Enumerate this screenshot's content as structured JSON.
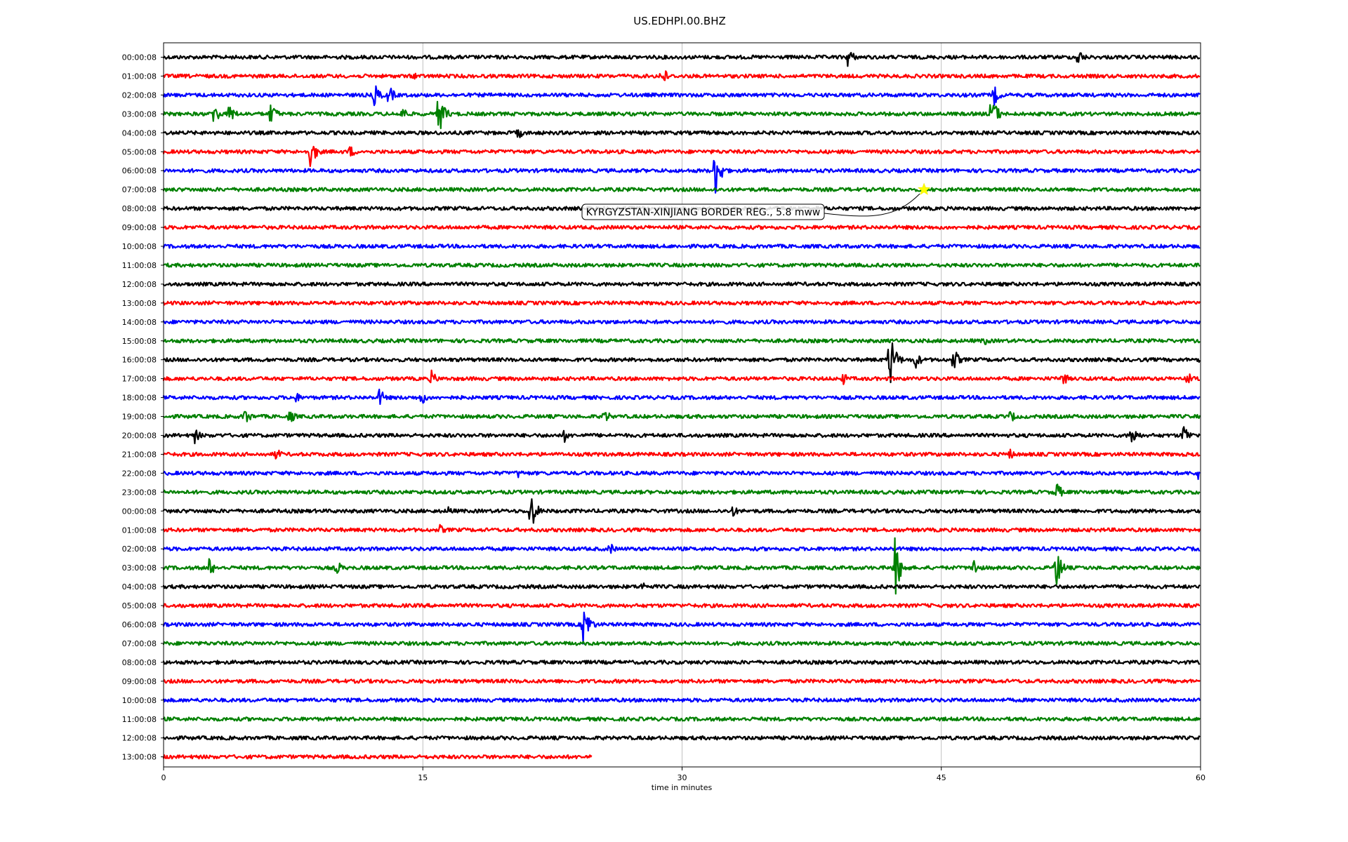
{
  "chart_data": {
    "type": "line",
    "title": "US.EDHPI.00.BHZ",
    "xlabel": "time in minutes",
    "ylabel": "",
    "xlim": [
      0,
      60
    ],
    "x_ticks": [
      0,
      15,
      30,
      45,
      60
    ],
    "x_tick_labels": [
      "0",
      "15",
      "30",
      "45",
      "60"
    ],
    "grid": "vertical at x ticks",
    "row_labels": [
      "00:00:08",
      "01:00:08",
      "02:00:08",
      "03:00:08",
      "04:00:08",
      "05:00:08",
      "06:00:08",
      "07:00:08",
      "08:00:08",
      "09:00:08",
      "10:00:08",
      "11:00:08",
      "12:00:08",
      "13:00:08",
      "14:00:08",
      "15:00:08",
      "16:00:08",
      "17:00:08",
      "18:00:08",
      "19:00:08",
      "20:00:08",
      "21:00:08",
      "22:00:08",
      "23:00:08",
      "00:00:08",
      "01:00:08",
      "02:00:08",
      "03:00:08",
      "04:00:08",
      "05:00:08",
      "06:00:08",
      "07:00:08",
      "08:00:08",
      "09:00:08",
      "10:00:08",
      "11:00:08",
      "12:00:08",
      "13:00:08"
    ],
    "color_cycle": [
      "#000000",
      "#ff0000",
      "#0000ff",
      "#008000"
    ],
    "last_row_end_minute": 24.8,
    "events": [
      {
        "row": 0,
        "minute": 39.6,
        "amp": 0.8
      },
      {
        "row": 0,
        "minute": 52.9,
        "amp": 0.7
      },
      {
        "row": 1,
        "minute": 28.8,
        "amp": 0.9
      },
      {
        "row": 1,
        "minute": 14.5,
        "amp": 0.35
      },
      {
        "row": 2,
        "minute": 12.2,
        "amp": 0.9
      },
      {
        "row": 2,
        "minute": 13.0,
        "amp": 0.8
      },
      {
        "row": 2,
        "minute": 48.0,
        "amp": 0.9
      },
      {
        "row": 3,
        "minute": 2.9,
        "amp": 0.9
      },
      {
        "row": 3,
        "minute": 3.8,
        "amp": 0.8
      },
      {
        "row": 3,
        "minute": 6.2,
        "amp": 0.9
      },
      {
        "row": 3,
        "minute": 13.8,
        "amp": 0.6
      },
      {
        "row": 3,
        "minute": 15.9,
        "amp": 1.7
      },
      {
        "row": 3,
        "minute": 47.9,
        "amp": 1.5
      },
      {
        "row": 4,
        "minute": 20.5,
        "amp": 0.5
      },
      {
        "row": 5,
        "minute": 8.5,
        "amp": 1.2
      },
      {
        "row": 5,
        "minute": 10.8,
        "amp": 0.5
      },
      {
        "row": 6,
        "minute": 31.9,
        "amp": 2.0
      },
      {
        "row": 15,
        "minute": 47.5,
        "amp": 0.4
      },
      {
        "row": 16,
        "minute": 42.0,
        "amp": 2.2
      },
      {
        "row": 16,
        "minute": 43.5,
        "amp": 0.7
      },
      {
        "row": 16,
        "minute": 45.7,
        "amp": 0.9
      },
      {
        "row": 16,
        "minute": 60.0,
        "amp": 0.9
      },
      {
        "row": 17,
        "minute": 15.5,
        "amp": 0.6
      },
      {
        "row": 17,
        "minute": 39.3,
        "amp": 0.5
      },
      {
        "row": 17,
        "minute": 52.0,
        "amp": 0.6
      },
      {
        "row": 17,
        "minute": 59.2,
        "amp": 0.6
      },
      {
        "row": 18,
        "minute": 7.6,
        "amp": 0.5
      },
      {
        "row": 18,
        "minute": 12.5,
        "amp": 0.7
      },
      {
        "row": 18,
        "minute": 14.9,
        "amp": 0.6
      },
      {
        "row": 19,
        "minute": 4.7,
        "amp": 0.7
      },
      {
        "row": 19,
        "minute": 7.3,
        "amp": 0.6
      },
      {
        "row": 19,
        "minute": 25.5,
        "amp": 0.6
      },
      {
        "row": 19,
        "minute": 49.0,
        "amp": 0.5
      },
      {
        "row": 20,
        "minute": 1.8,
        "amp": 0.6
      },
      {
        "row": 20,
        "minute": 23.2,
        "amp": 0.5
      },
      {
        "row": 20,
        "minute": 56.0,
        "amp": 0.9
      },
      {
        "row": 20,
        "minute": 59.0,
        "amp": 0.9
      },
      {
        "row": 21,
        "minute": 6.5,
        "amp": 0.5
      },
      {
        "row": 21,
        "minute": 48.9,
        "amp": 0.5
      },
      {
        "row": 22,
        "minute": 20.5,
        "amp": 0.4
      },
      {
        "row": 22,
        "minute": 59.8,
        "amp": 0.6
      },
      {
        "row": 23,
        "minute": 51.6,
        "amp": 0.9
      },
      {
        "row": 24,
        "minute": 16.5,
        "amp": 0.4
      },
      {
        "row": 24,
        "minute": 21.2,
        "amp": 1.7
      },
      {
        "row": 24,
        "minute": 32.9,
        "amp": 0.5
      },
      {
        "row": 25,
        "minute": 16.0,
        "amp": 0.4
      },
      {
        "row": 26,
        "minute": 25.8,
        "amp": 0.5
      },
      {
        "row": 27,
        "minute": 2.6,
        "amp": 0.8
      },
      {
        "row": 27,
        "minute": 10.0,
        "amp": 0.6
      },
      {
        "row": 27,
        "minute": 42.3,
        "amp": 2.3
      },
      {
        "row": 27,
        "minute": 46.8,
        "amp": 0.9
      },
      {
        "row": 27,
        "minute": 51.6,
        "amp": 1.7
      },
      {
        "row": 28,
        "minute": 27.7,
        "amp": 0.4
      },
      {
        "row": 30,
        "minute": 24.3,
        "amp": 1.8
      }
    ],
    "annotation": {
      "text": "KYRGYZSTAN-XINJIANG BORDER REG., 5.8 mww",
      "row": 7,
      "minute": 44.0,
      "marker": "star",
      "marker_color": "#ffff00"
    }
  }
}
